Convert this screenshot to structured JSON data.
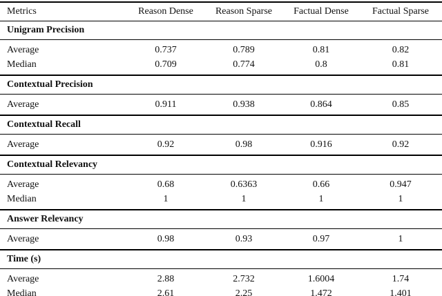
{
  "meta": {
    "background_color": "#ffffff",
    "text_color": "#111111",
    "rule_color": "#000000"
  },
  "table": {
    "columns": [
      "Metrics",
      "Reason Dense",
      "Reason Sparse",
      "Factual Dense",
      "Factual Sparse"
    ],
    "sections": [
      {
        "title": "Unigram Precision",
        "rows": [
          {
            "label": "Average",
            "values": [
              "0.737",
              "0.789",
              "0.81",
              "0.82"
            ]
          },
          {
            "label": "Median",
            "values": [
              "0.709",
              "0.774",
              "0.8",
              "0.81"
            ]
          }
        ]
      },
      {
        "title": "Contextual Precision",
        "rows": [
          {
            "label": "Average",
            "values": [
              "0.911",
              "0.938",
              "0.864",
              "0.85"
            ]
          }
        ]
      },
      {
        "title": "Contextual Recall",
        "rows": [
          {
            "label": "Average",
            "values": [
              "0.92",
              "0.98",
              "0.916",
              "0.92"
            ]
          }
        ]
      },
      {
        "title": "Contextual Relevancy",
        "rows": [
          {
            "label": "Average",
            "values": [
              "0.68",
              "0.6363",
              "0.66",
              "0.947"
            ]
          },
          {
            "label": "Median",
            "values": [
              "1",
              "1",
              "1",
              "1"
            ]
          }
        ]
      },
      {
        "title": "Answer Relevancy",
        "rows": [
          {
            "label": "Average",
            "values": [
              "0.98",
              "0.93",
              "0.97",
              "1"
            ]
          }
        ]
      },
      {
        "title": "Time (s)",
        "rows": [
          {
            "label": "Average",
            "values": [
              "2.88",
              "2.732",
              "1.6004",
              "1.74"
            ]
          },
          {
            "label": "Median",
            "values": [
              "2.61",
              "2.25",
              "1.472",
              "1.401"
            ]
          }
        ]
      }
    ]
  }
}
